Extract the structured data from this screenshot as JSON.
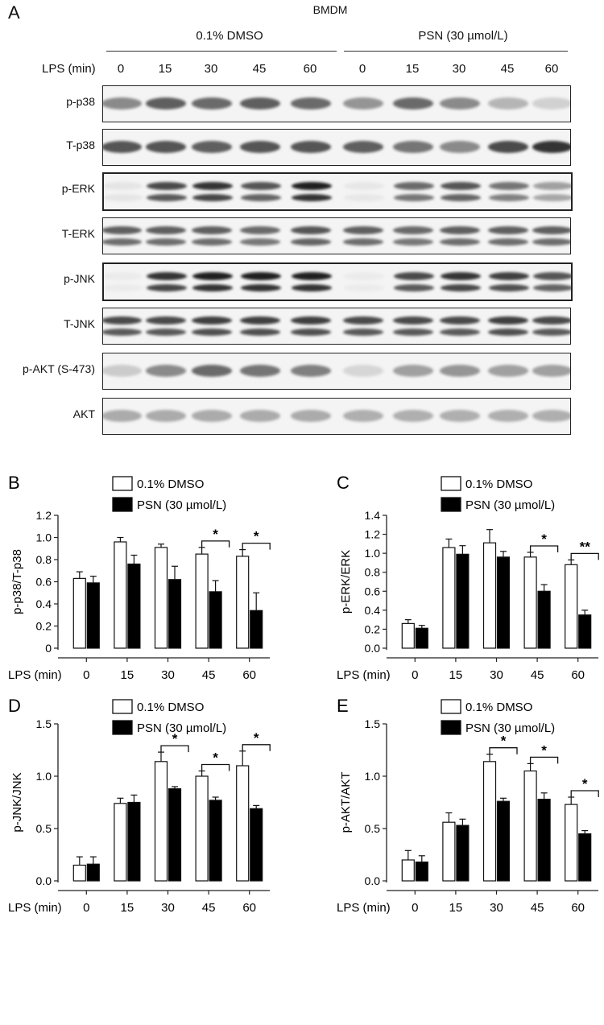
{
  "panel_a": {
    "letter": "A",
    "title": "BMDM",
    "groups": [
      "0.1% DMSO",
      "PSN (30 µmol/L)"
    ],
    "lps_label": "LPS (min)",
    "timepoints": [
      "0",
      "15",
      "30",
      "45",
      "60",
      "0",
      "15",
      "30",
      "45",
      "60"
    ],
    "blots": [
      {
        "label": "p-p38",
        "intensity": [
          0.45,
          0.65,
          0.6,
          0.65,
          0.6,
          0.4,
          0.6,
          0.45,
          0.25,
          0.12
        ],
        "double": false,
        "thick": false
      },
      {
        "label": "T-p38",
        "intensity": [
          0.7,
          0.7,
          0.65,
          0.7,
          0.7,
          0.65,
          0.55,
          0.45,
          0.75,
          0.85
        ],
        "double": false,
        "thick": false
      },
      {
        "label": "p-ERK",
        "intensity": [
          0.03,
          0.75,
          0.85,
          0.7,
          0.95,
          0.02,
          0.6,
          0.7,
          0.55,
          0.35
        ],
        "double": true,
        "thick": true
      },
      {
        "label": "T-ERK",
        "intensity": [
          0.65,
          0.65,
          0.65,
          0.6,
          0.7,
          0.65,
          0.6,
          0.65,
          0.65,
          0.65
        ],
        "double": true,
        "thick": false
      },
      {
        "label": "p-JNK",
        "intensity": [
          0.0,
          0.85,
          0.95,
          0.95,
          0.95,
          0.0,
          0.75,
          0.85,
          0.8,
          0.7
        ],
        "double": true,
        "thick": true
      },
      {
        "label": "T-JNK",
        "intensity": [
          0.75,
          0.75,
          0.8,
          0.8,
          0.8,
          0.75,
          0.75,
          0.75,
          0.8,
          0.75
        ],
        "double": true,
        "thick": false
      },
      {
        "label": "p-AKT (S-473)",
        "intensity": [
          0.15,
          0.45,
          0.6,
          0.55,
          0.5,
          0.1,
          0.35,
          0.4,
          0.35,
          0.35
        ],
        "double": false,
        "thick": false
      },
      {
        "label": "AKT",
        "intensity": [
          0.3,
          0.3,
          0.3,
          0.3,
          0.3,
          0.28,
          0.28,
          0.28,
          0.28,
          0.28
        ],
        "double": false,
        "thick": false
      }
    ]
  },
  "colors": {
    "dmso": "#ffffff",
    "psn": "#000000",
    "axis": "#222222"
  },
  "chart_data": [
    {
      "panel": "B",
      "type": "bar",
      "categories": [
        "0",
        "15",
        "30",
        "45",
        "60"
      ],
      "xlabel": "LPS (min)",
      "ylabel": "p-p38/T-p38",
      "ylim": [
        0,
        1.2
      ],
      "yticks": [
        "0",
        "0.2",
        "0.4",
        "0.6",
        "0.8",
        "1.0",
        "1.2"
      ],
      "series": [
        {
          "name": "0.1% DMSO",
          "values": [
            0.63,
            0.96,
            0.91,
            0.85,
            0.83
          ],
          "errors": [
            0.06,
            0.04,
            0.03,
            0.06,
            0.06
          ]
        },
        {
          "name": "PSN (30 µmol/L)",
          "values": [
            0.59,
            0.76,
            0.62,
            0.51,
            0.34
          ],
          "errors": [
            0.06,
            0.08,
            0.12,
            0.1,
            0.16
          ]
        }
      ],
      "significance": [
        {
          "category": "45",
          "label": "*"
        },
        {
          "category": "60",
          "label": "*"
        }
      ]
    },
    {
      "panel": "C",
      "type": "bar",
      "categories": [
        "0",
        "15",
        "30",
        "45",
        "60"
      ],
      "xlabel": "LPS (min)",
      "ylabel": "p-ERK/ERK",
      "ylim": [
        0,
        1.4
      ],
      "yticks": [
        "0.0",
        "0.2",
        "0.4",
        "0.6",
        "0.8",
        "1.0",
        "1.2",
        "1.4"
      ],
      "series": [
        {
          "name": "0.1% DMSO",
          "values": [
            0.26,
            1.06,
            1.11,
            0.96,
            0.88
          ],
          "errors": [
            0.04,
            0.09,
            0.14,
            0.05,
            0.05
          ]
        },
        {
          "name": "PSN (30 µmol/L)",
          "values": [
            0.21,
            0.99,
            0.96,
            0.6,
            0.35
          ],
          "errors": [
            0.03,
            0.09,
            0.06,
            0.07,
            0.05
          ]
        }
      ],
      "significance": [
        {
          "category": "45",
          "label": "*"
        },
        {
          "category": "60",
          "label": "**"
        }
      ]
    },
    {
      "panel": "D",
      "type": "bar",
      "categories": [
        "0",
        "15",
        "30",
        "45",
        "60"
      ],
      "xlabel": "LPS (min)",
      "ylabel": "p-JNK/JNK",
      "ylim": [
        0,
        1.5
      ],
      "yticks": [
        "0.0",
        "0.5",
        "1.0",
        "1.5"
      ],
      "series": [
        {
          "name": "0.1% DMSO",
          "values": [
            0.15,
            0.74,
            1.14,
            1.0,
            1.1
          ],
          "errors": [
            0.08,
            0.05,
            0.09,
            0.05,
            0.14
          ]
        },
        {
          "name": "PSN (30 µmol/L)",
          "values": [
            0.16,
            0.75,
            0.88,
            0.77,
            0.69
          ],
          "errors": [
            0.07,
            0.07,
            0.02,
            0.03,
            0.03
          ]
        }
      ],
      "significance": [
        {
          "category": "30",
          "label": "*"
        },
        {
          "category": "45",
          "label": "*"
        },
        {
          "category": "60",
          "label": "*"
        }
      ]
    },
    {
      "panel": "E",
      "type": "bar",
      "categories": [
        "0",
        "15",
        "30",
        "45",
        "60"
      ],
      "xlabel": "LPS (min)",
      "ylabel": "p-AKT/AKT",
      "ylim": [
        0,
        1.5
      ],
      "yticks": [
        "0.0",
        "0.5",
        "1.0",
        "1.5"
      ],
      "series": [
        {
          "name": "0.1% DMSO",
          "values": [
            0.2,
            0.56,
            1.14,
            1.05,
            0.73
          ],
          "errors": [
            0.09,
            0.09,
            0.07,
            0.07,
            0.07
          ]
        },
        {
          "name": "PSN (30 µmol/L)",
          "values": [
            0.18,
            0.53,
            0.76,
            0.78,
            0.45
          ],
          "errors": [
            0.06,
            0.06,
            0.03,
            0.06,
            0.03
          ]
        }
      ],
      "significance": [
        {
          "category": "30",
          "label": "*"
        },
        {
          "category": "45",
          "label": "*"
        },
        {
          "category": "60",
          "label": "*"
        }
      ]
    }
  ]
}
